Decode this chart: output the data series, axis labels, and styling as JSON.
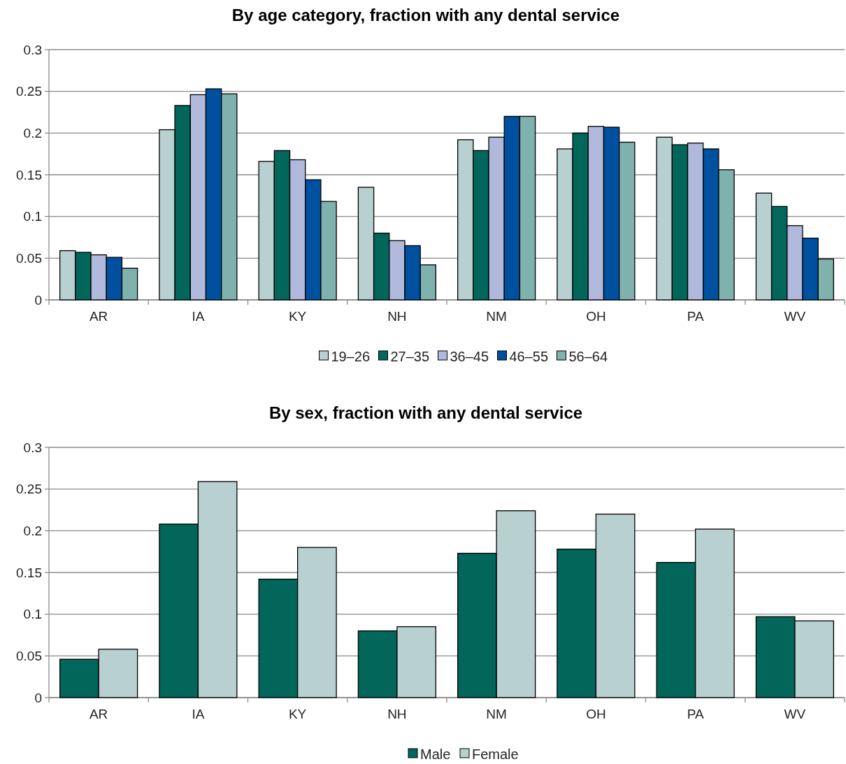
{
  "chart_data": [
    {
      "type": "bar",
      "title": "By age category, fraction with any dental service",
      "categories": [
        "AR",
        "IA",
        "KY",
        "NH",
        "NM",
        "OH",
        "PA",
        "WV"
      ],
      "ylim": [
        0,
        0.3
      ],
      "yticks": [
        0,
        0.05,
        0.1,
        0.15,
        0.2,
        0.25,
        0.3
      ],
      "grid": "y",
      "legend": "bottom",
      "series": [
        {
          "name": "19–26",
          "color": "#b8d0cf",
          "values": [
            0.059,
            0.204,
            0.166,
            0.135,
            0.192,
            0.181,
            0.195,
            0.128
          ]
        },
        {
          "name": "27–35",
          "color": "#02665a",
          "values": [
            0.057,
            0.233,
            0.179,
            0.08,
            0.179,
            0.2,
            0.186,
            0.112
          ]
        },
        {
          "name": "36–45",
          "color": "#b0b8dc",
          "values": [
            0.054,
            0.246,
            0.168,
            0.071,
            0.195,
            0.208,
            0.188,
            0.089
          ]
        },
        {
          "name": "46–55",
          "color": "#0050a0",
          "values": [
            0.051,
            0.253,
            0.144,
            0.065,
            0.22,
            0.207,
            0.181,
            0.074
          ]
        },
        {
          "name": "56–64",
          "color": "#7fb2ad",
          "values": [
            0.038,
            0.247,
            0.118,
            0.042,
            0.22,
            0.189,
            0.156,
            0.049
          ]
        }
      ]
    },
    {
      "type": "bar",
      "title": "By sex, fraction with any dental service",
      "categories": [
        "AR",
        "IA",
        "KY",
        "NH",
        "NM",
        "OH",
        "PA",
        "WV"
      ],
      "ylim": [
        0,
        0.3
      ],
      "yticks": [
        0,
        0.05,
        0.1,
        0.15,
        0.2,
        0.25,
        0.3
      ],
      "grid": "y",
      "legend": "bottom",
      "series": [
        {
          "name": "Male",
          "color": "#02665a",
          "values": [
            0.046,
            0.208,
            0.142,
            0.08,
            0.173,
            0.178,
            0.162,
            0.097
          ]
        },
        {
          "name": "Female",
          "color": "#b8d0cf",
          "values": [
            0.058,
            0.259,
            0.18,
            0.085,
            0.224,
            0.22,
            0.202,
            0.092
          ]
        }
      ]
    }
  ]
}
